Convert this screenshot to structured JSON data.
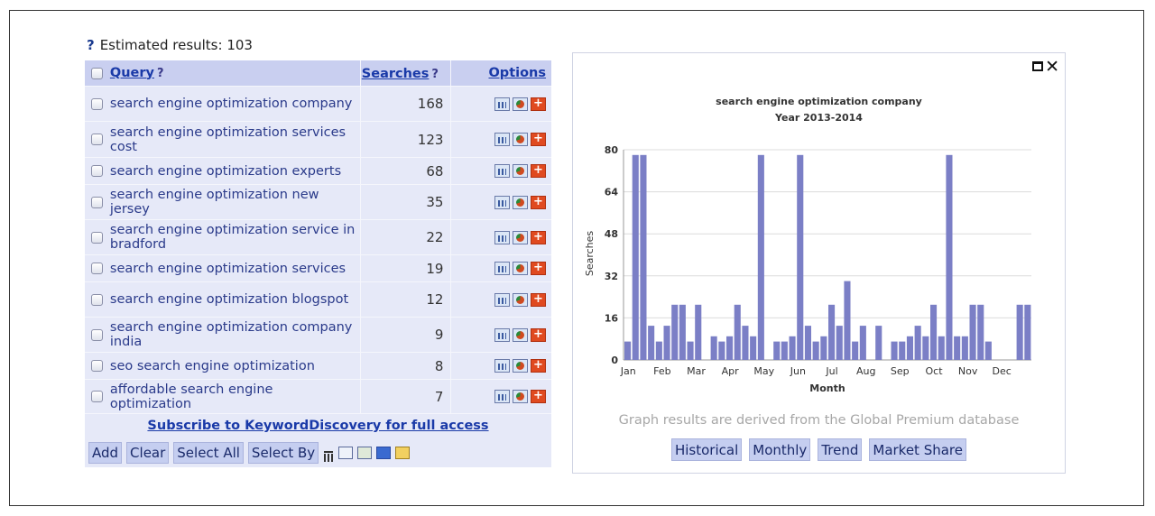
{
  "estimated": {
    "help": "?",
    "label": "Estimated results: 103"
  },
  "table": {
    "headers": {
      "query": "Query",
      "query_help": "?",
      "searches": "Searches",
      "searches_help": "?",
      "options": "Options"
    },
    "rows": [
      {
        "query": "search engine optimization company",
        "searches": "168"
      },
      {
        "query": "search engine optimization services cost",
        "searches": "123"
      },
      {
        "query": "search engine optimization experts",
        "searches": "68"
      },
      {
        "query": "search engine optimization new jersey",
        "searches": "35"
      },
      {
        "query": "search engine optimization service in bradford",
        "searches": "22"
      },
      {
        "query": "search engine optimization services",
        "searches": "19"
      },
      {
        "query": "search engine optimization blogspot",
        "searches": "12"
      },
      {
        "query": "search engine optimization company india",
        "searches": "9"
      },
      {
        "query": "seo search engine optimization",
        "searches": "8"
      },
      {
        "query": "affordable search engine optimization",
        "searches": "7"
      }
    ],
    "icons": [
      "bar-chart-icon",
      "pie-chart-icon",
      "add-icon"
    ],
    "add_glyph": "+",
    "subscribe": "Subscribe to KeywordDiscovery for full access"
  },
  "toolbar": {
    "add": "Add",
    "clear": "Clear",
    "select_all": "Select All",
    "select_by": "Select By",
    "icons": [
      "trash-icon",
      "graph-icon",
      "export-icon",
      "dns-icon",
      "report-icon"
    ]
  },
  "chart_panel": {
    "close": "✕",
    "note": "Graph results are derived from the Global Premium database",
    "buttons": [
      "Historical",
      "Monthly",
      "Trend",
      "Market Share"
    ]
  },
  "chart_data": {
    "type": "bar",
    "title": "search engine optimization company",
    "subtitle": "Year 2013-2014",
    "xlabel": "Month",
    "ylabel": "Searches",
    "ylim": [
      0,
      80
    ],
    "yticks": [
      0,
      16,
      32,
      48,
      64,
      80
    ],
    "x_tick_labels": [
      "Jan",
      "Feb",
      "Mar",
      "Apr",
      "May",
      "Jun",
      "Jul",
      "Aug",
      "Sep",
      "Oct",
      "Nov",
      "Dec"
    ],
    "color": "#7b7fc6",
    "values": [
      7,
      78,
      78,
      13,
      7,
      13,
      21,
      21,
      7,
      21,
      0,
      9,
      7,
      9,
      21,
      13,
      9,
      78,
      0,
      7,
      7,
      9,
      78,
      13,
      7,
      9,
      21,
      13,
      30,
      7,
      13,
      0,
      13,
      0,
      7,
      7,
      9,
      13,
      9,
      21,
      9,
      78,
      9,
      9,
      21,
      21,
      7,
      0,
      0,
      0,
      21,
      21
    ],
    "grid": true
  }
}
